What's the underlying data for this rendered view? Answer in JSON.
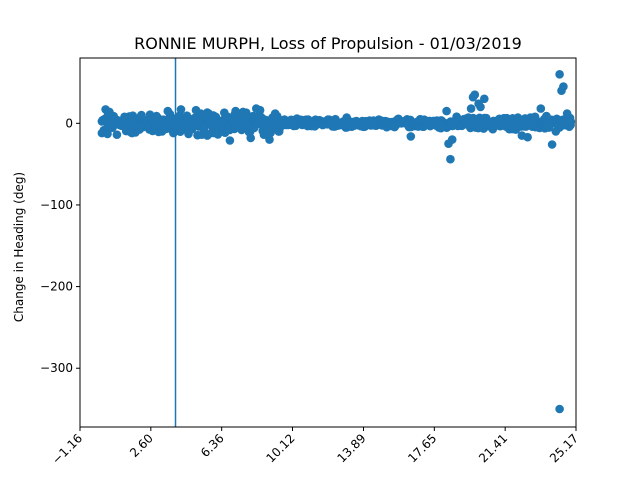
{
  "chart_data": {
    "type": "scatter",
    "title": "RONNIE MURPH, Loss of Propulsion - 01/03/2019",
    "xlabel": "",
    "ylabel": "Change in Heading (deg)",
    "xlim": [
      -1.16,
      25.17
    ],
    "ylim": [
      -372,
      80
    ],
    "x_ticks": [
      -1.16,
      2.6,
      6.36,
      10.12,
      13.89,
      17.65,
      21.41,
      25.17
    ],
    "x_tick_labels": [
      "−1.16",
      "2.60",
      "6.36",
      "10.12",
      "13.89",
      "17.65",
      "21.41",
      "25.17"
    ],
    "y_ticks": [
      0,
      -100,
      -200,
      -300
    ],
    "y_tick_labels": [
      "0",
      "−100",
      "−200",
      "−300"
    ],
    "vline_x": 3.91,
    "grid": false,
    "marker_color": "#1f77b4",
    "band": {
      "x_start": 0.0,
      "x_end": 24.9,
      "segments": [
        {
          "x0": 0.0,
          "x1": 4.5,
          "amp": 14
        },
        {
          "x0": 4.5,
          "x1": 9.5,
          "amp": 16
        },
        {
          "x0": 9.5,
          "x1": 18.5,
          "amp": 6
        },
        {
          "x0": 18.5,
          "x1": 24.9,
          "amp": 9
        }
      ]
    },
    "points": [
      [
        0.2,
        17
      ],
      [
        0.4,
        14
      ],
      [
        0.0,
        -12
      ],
      [
        0.3,
        -13
      ],
      [
        0.8,
        -14
      ],
      [
        1.2,
        8
      ],
      [
        1.6,
        -12
      ],
      [
        2.1,
        10
      ],
      [
        2.9,
        9
      ],
      [
        3.2,
        -10
      ],
      [
        3.5,
        15
      ],
      [
        3.8,
        -12
      ],
      [
        4.2,
        17
      ],
      [
        4.6,
        -13
      ],
      [
        5.0,
        16
      ],
      [
        5.3,
        -14
      ],
      [
        5.6,
        -15
      ],
      [
        6.0,
        -12
      ],
      [
        6.5,
        13
      ],
      [
        6.8,
        -21
      ],
      [
        7.1,
        15
      ],
      [
        7.5,
        14
      ],
      [
        7.9,
        -18
      ],
      [
        8.2,
        18
      ],
      [
        8.4,
        16
      ],
      [
        8.6,
        -14
      ],
      [
        8.9,
        -20
      ],
      [
        9.2,
        12
      ],
      [
        12.4,
        5
      ],
      [
        13.0,
        7
      ],
      [
        16.4,
        -16
      ],
      [
        16.9,
        5
      ],
      [
        18.0,
        -6
      ],
      [
        18.3,
        15
      ],
      [
        18.4,
        -25
      ],
      [
        18.5,
        -44
      ],
      [
        18.6,
        -20
      ],
      [
        19.6,
        18
      ],
      [
        19.7,
        32
      ],
      [
        19.8,
        35
      ],
      [
        20.0,
        24
      ],
      [
        20.1,
        20
      ],
      [
        20.3,
        30
      ],
      [
        22.3,
        -15
      ],
      [
        22.6,
        -17
      ],
      [
        23.0,
        8
      ],
      [
        23.3,
        18
      ],
      [
        23.6,
        9
      ],
      [
        23.9,
        -26
      ],
      [
        24.1,
        -10
      ],
      [
        24.3,
        60
      ],
      [
        24.4,
        40
      ],
      [
        24.5,
        45
      ],
      [
        24.7,
        12
      ],
      [
        24.9,
        2
      ],
      [
        24.3,
        -350
      ]
    ]
  }
}
